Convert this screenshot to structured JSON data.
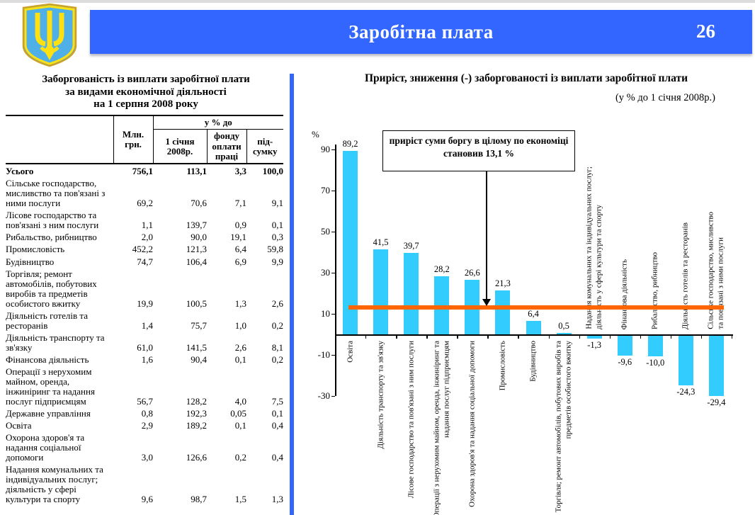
{
  "header": {
    "title": "Заробітна плата",
    "page_number": "26"
  },
  "colors": {
    "header_blue": "#3366FF",
    "bar_cyan": "#33CCFF",
    "reference_orange": "#FF6600",
    "emblem_shield_blue": "#4FB0E8",
    "emblem_trident_yellow": "#FFE011"
  },
  "table": {
    "title_lines": [
      "Заборгованість із виплати заробітної плати",
      "за видами економічної діяльності",
      "на 1 серпня 2008 року"
    ],
    "header": {
      "mln": "Млн. грн.",
      "group": "у % до",
      "sub": [
        "1 січня 2008р.",
        "фонду оплати праці",
        "під- сумку"
      ]
    },
    "rows": [
      {
        "label": "Усього",
        "bold": true,
        "values": [
          "756,1",
          "113,1",
          "3,3",
          "100,0"
        ]
      },
      {
        "label": "Сільське господарство, мисливство та пов'язані з ними послуги",
        "bold": false,
        "values": [
          "69,2",
          "70,6",
          "7,1",
          "9,1"
        ]
      },
      {
        "label": "Лісове господарство  та пов'язані з ним послуги",
        "bold": false,
        "values": [
          "1,1",
          "139,7",
          "0,9",
          "0,1"
        ]
      },
      {
        "label": "Рибальство, рибництво",
        "bold": false,
        "values": [
          "2,0",
          "90,0",
          "19,1",
          "0,3"
        ]
      },
      {
        "label": "Промисловість",
        "bold": false,
        "values": [
          "452,2",
          "121,3",
          "6,4",
          "59,8"
        ]
      },
      {
        "label": "Будівництво",
        "bold": false,
        "values": [
          "74,7",
          "106,4",
          "6,9",
          "9,9"
        ]
      },
      {
        "label": "Торгівля; ремонт автомобілів, побутових виробів та предметів особистого вжитку",
        "bold": false,
        "values": [
          "19,9",
          "100,5",
          "1,3",
          "2,6"
        ]
      },
      {
        "label": "Діяльність готелів та ресторанів",
        "bold": false,
        "values": [
          "1,4",
          "75,7",
          "1,0",
          "0,2"
        ]
      },
      {
        "label": "Діяльність транспорту та зв'язку",
        "bold": false,
        "values": [
          "61,0",
          "141,5",
          "2,6",
          "8,1"
        ]
      },
      {
        "label": "Фінансова діяльність",
        "bold": false,
        "values": [
          "1,6",
          "90,4",
          "0,1",
          "0,2"
        ]
      },
      {
        "label": "Операції з нерухомим майном, оренда, інжиніринг та надання послуг підприємцям",
        "bold": false,
        "values": [
          "56,7",
          "128,2",
          "4,0",
          "7,5"
        ]
      },
      {
        "label": "Державне управління",
        "bold": false,
        "values": [
          "0,8",
          "192,3",
          "0,05",
          "0,1"
        ]
      },
      {
        "label": "Освіта",
        "bold": false,
        "values": [
          "2,9",
          "189,2",
          "0,1",
          "0,4"
        ]
      },
      {
        "label": "Охорона здоров'я та надання соціальної допомоги",
        "bold": false,
        "values": [
          "3,0",
          "126,6",
          "0,2",
          "0,4"
        ]
      },
      {
        "label": "Надання комунальних та індивідуальних послуг; діяльність у сфері культури та спорту",
        "bold": false,
        "values": [
          "9,6",
          "98,7",
          "1,5",
          "1,3"
        ]
      }
    ]
  },
  "chart_data": {
    "type": "bar",
    "title": "Приріст, зниження (-) заборгованості із виплати заробітної плати",
    "subtitle": "(у % до 1 січня 2008р.)",
    "ylabel": "%",
    "annotation": "приріст суми боргу в цілому по економіці становив 13,1 %",
    "grid": false,
    "legend": "none",
    "ylim": [
      -33,
      95
    ],
    "yticks": [
      90,
      70,
      50,
      30,
      10,
      -10,
      -30
    ],
    "bar_color": "#33CCFF",
    "reference_line": {
      "value": 13.1,
      "color": "#FF6600"
    },
    "categories": [
      "Освіта",
      "Діяльність транспорту та зв'язку",
      "Лісове господарство та пов'язані з ним послуги",
      "Операції з нерухомим майном, оренда, інжиніринг та надання послуг підприємцям",
      "Охорона здоров'я та надання соціальної допомоги",
      "Промисловість",
      "Будівництво",
      "Торгівля; ремонт автомобілів, побутових виробів та предметів особистого вжитку",
      "Надання комунальних та індивідуальних послуг; діяльність у сфері культури та спорту",
      "Фінансова діяльність",
      "Рибальство, рибництво",
      "Діяльність готелів та ресторанів",
      "Сільське господарство, мисливство та пов'язані з ними послуги"
    ],
    "label_lines": [
      [
        "Освіта"
      ],
      [
        "Діяльність транспорту та зв'язку"
      ],
      [
        "Лісове господарство та пов'язані з ним послуги"
      ],
      [
        "Операції з нерухомим майном, оренда, інжиніринг та",
        "надання послуг підприємцям"
      ],
      [
        "Охорона здоров'я та надання соціальної допомоги"
      ],
      [
        "Промисловість"
      ],
      [
        "Будівництво"
      ],
      [
        "Торгівля; ремонт автомобілів, побутових виробів та",
        "предметів особистого вжитку"
      ],
      [
        "Надання комунальних та індивідуальних послуг;",
        "діяльність у сфері культури та спорту"
      ],
      [
        "Фінансова діяльність"
      ],
      [
        "Рибальство, рибництво"
      ],
      [
        "Діяльність готелів та ресторанів"
      ],
      [
        "Сільське господарство, мисливство",
        "та пов'язані з ними послуги"
      ]
    ],
    "values": [
      89.2,
      41.5,
      39.7,
      28.2,
      26.6,
      21.3,
      6.4,
      0.5,
      -1.3,
      -9.6,
      -10.0,
      -24.3,
      -29.4
    ],
    "value_labels": [
      "89,2",
      "41,5",
      "39,7",
      "28,2",
      "26,6",
      "21,3",
      "6,4",
      "0,5",
      "-1,3",
      "-9,6",
      "-10,0",
      "-24,3",
      "-29,4"
    ]
  }
}
